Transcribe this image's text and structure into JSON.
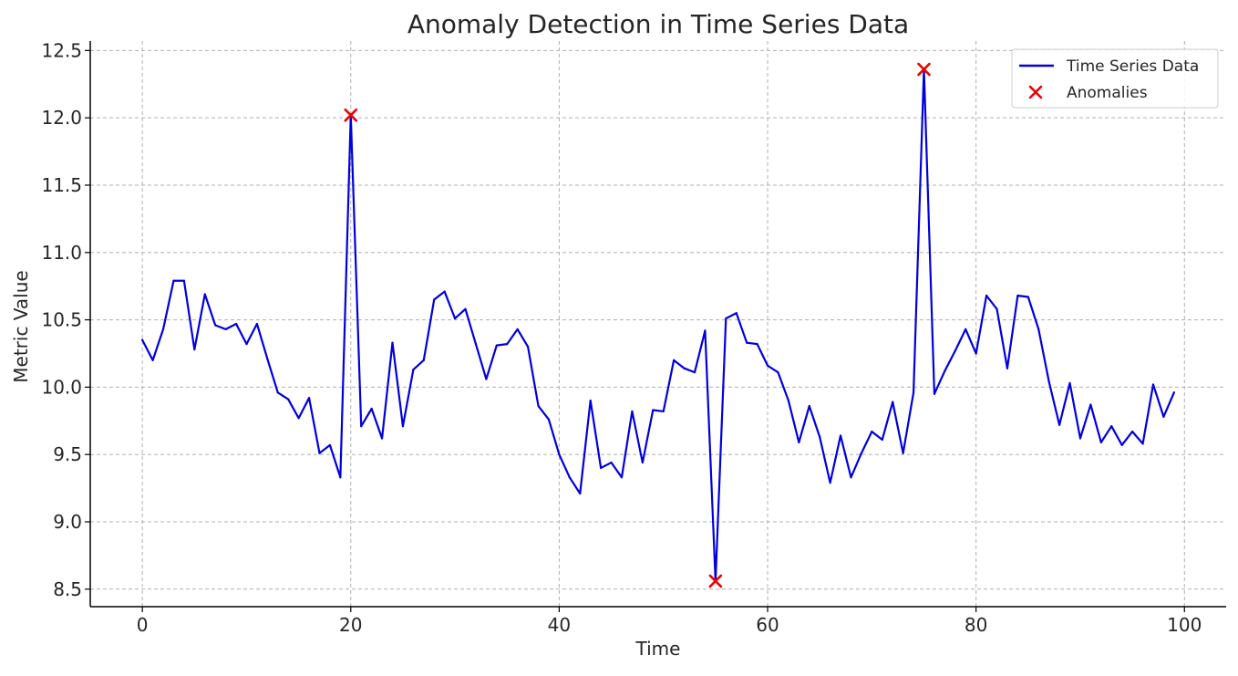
{
  "chart_data": {
    "type": "line",
    "title": "Anomaly Detection in Time Series Data",
    "xlabel": "Time",
    "ylabel": "Metric Value",
    "xlim": [
      -5,
      104
    ],
    "ylim": [
      8.37,
      12.57
    ],
    "xticks": [
      0,
      20,
      40,
      60,
      80,
      100
    ],
    "yticks": [
      8.5,
      9.0,
      9.5,
      10.0,
      10.5,
      11.0,
      11.5,
      12.0,
      12.5
    ],
    "xtick_labels": [
      "0",
      "20",
      "40",
      "60",
      "80",
      "100"
    ],
    "ytick_labels": [
      "8.5",
      "9.0",
      "9.5",
      "10.0",
      "10.5",
      "11.0",
      "11.5",
      "12.0",
      "12.5"
    ],
    "grid": true,
    "legend_position": "top-right",
    "series": [
      {
        "name": "Time Series Data",
        "kind": "line",
        "color": "#0000dd",
        "x": [
          0,
          1,
          2,
          3,
          4,
          5,
          6,
          7,
          8,
          9,
          10,
          11,
          12,
          13,
          14,
          15,
          16,
          17,
          18,
          19,
          20,
          21,
          22,
          23,
          24,
          25,
          26,
          27,
          28,
          29,
          30,
          31,
          32,
          33,
          34,
          35,
          36,
          37,
          38,
          39,
          40,
          41,
          42,
          43,
          44,
          45,
          46,
          47,
          48,
          49,
          50,
          51,
          52,
          53,
          54,
          55,
          56,
          57,
          58,
          59,
          60,
          61,
          62,
          63,
          64,
          65,
          66,
          67,
          68,
          69,
          70,
          71,
          72,
          73,
          74,
          75,
          76,
          77,
          78,
          79,
          80,
          81,
          82,
          83,
          84,
          85,
          86,
          87,
          88,
          89,
          90,
          91,
          92,
          93,
          94,
          95,
          96,
          97,
          98,
          99
        ],
        "values": [
          10.35,
          10.2,
          10.43,
          10.79,
          10.79,
          10.28,
          10.69,
          10.46,
          10.43,
          10.47,
          10.32,
          10.47,
          10.21,
          9.96,
          9.91,
          9.77,
          9.92,
          9.51,
          9.57,
          9.33,
          12.02,
          9.71,
          9.84,
          9.62,
          10.33,
          9.71,
          10.13,
          10.2,
          10.65,
          10.71,
          10.51,
          10.58,
          10.32,
          10.06,
          10.31,
          10.32,
          10.43,
          10.3,
          9.86,
          9.76,
          9.5,
          9.33,
          9.21,
          9.9,
          9.4,
          9.44,
          9.33,
          9.82,
          9.44,
          9.83,
          9.82,
          10.2,
          10.14,
          10.11,
          10.42,
          8.56,
          10.51,
          10.55,
          10.33,
          10.32,
          10.16,
          10.11,
          9.9,
          9.59,
          9.86,
          9.63,
          9.29,
          9.64,
          9.33,
          9.51,
          9.67,
          9.61,
          9.89,
          9.51,
          9.96,
          12.36,
          9.95,
          10.12,
          10.27,
          10.43,
          10.25,
          10.68,
          10.58,
          10.14,
          10.68,
          10.67,
          10.43,
          10.04,
          9.72,
          10.03,
          9.62,
          9.87,
          9.59,
          9.71,
          9.57,
          9.67,
          9.58,
          10.02,
          9.78,
          9.96
        ]
      },
      {
        "name": "Anomalies",
        "kind": "scatter",
        "marker": "x",
        "color": "#ee0000",
        "x": [
          20,
          55,
          75
        ],
        "values": [
          12.02,
          8.56,
          12.36
        ]
      }
    ]
  }
}
